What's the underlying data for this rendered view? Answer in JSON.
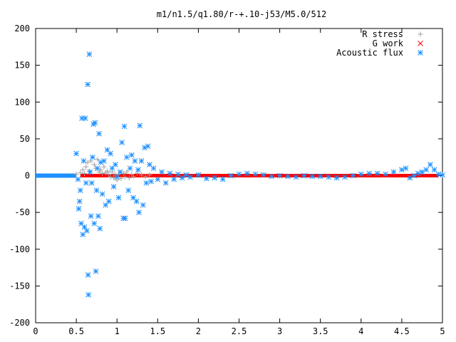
{
  "chart_data": {
    "type": "scatter",
    "title": "m1/n1.5/q1.80/r-+.10-j53/M5.0/512",
    "xlabel": "",
    "ylabel": "",
    "xlim": [
      0,
      5
    ],
    "ylim": [
      -200,
      200
    ],
    "x_ticks": [
      "0",
      "0.5",
      "1",
      "1.5",
      "2",
      "2.5",
      "3",
      "3.5",
      "4",
      "4.5",
      "5"
    ],
    "y_ticks": [
      "200",
      "150",
      "100",
      "50",
      "0",
      "-50",
      "-100",
      "-150",
      "-200"
    ],
    "legend_position": "top-right",
    "grid": false,
    "series": [
      {
        "name": "R stress",
        "marker": "+",
        "color": "#a0a0a0",
        "points": [
          [
            0.5,
            2
          ],
          [
            0.55,
            4
          ],
          [
            0.58,
            8
          ],
          [
            0.6,
            3
          ],
          [
            0.62,
            12
          ],
          [
            0.64,
            18
          ],
          [
            0.66,
            6
          ],
          [
            0.68,
            20
          ],
          [
            0.7,
            25
          ],
          [
            0.72,
            15
          ],
          [
            0.74,
            10
          ],
          [
            0.76,
            22
          ],
          [
            0.78,
            5
          ],
          [
            0.8,
            8
          ],
          [
            0.82,
            3
          ],
          [
            0.84,
            12
          ],
          [
            0.86,
            4
          ],
          [
            0.88,
            6
          ],
          [
            0.9,
            2
          ],
          [
            0.92,
            -2
          ],
          [
            0.94,
            5
          ],
          [
            0.96,
            -3
          ],
          [
            0.98,
            1
          ],
          [
            1.0,
            -6
          ],
          [
            1.02,
            2
          ],
          [
            1.05,
            -4
          ],
          [
            1.08,
            3
          ],
          [
            1.1,
            -2
          ],
          [
            1.12,
            5
          ],
          [
            1.15,
            -3
          ],
          [
            1.18,
            2
          ],
          [
            1.2,
            -1
          ],
          [
            1.25,
            3
          ],
          [
            1.3,
            1
          ],
          [
            1.35,
            -1
          ],
          [
            1.4,
            1
          ]
        ]
      },
      {
        "name": "G work",
        "marker": "x",
        "color": "#ff0000",
        "points": []
      },
      {
        "name": "Acoustic flux",
        "marker": "*",
        "color": "#1e90ff",
        "points": [
          [
            0.5,
            30
          ],
          [
            0.52,
            -5
          ],
          [
            0.53,
            -45
          ],
          [
            0.54,
            -35
          ],
          [
            0.55,
            -20
          ],
          [
            0.56,
            -65
          ],
          [
            0.57,
            78
          ],
          [
            0.58,
            -80
          ],
          [
            0.59,
            20
          ],
          [
            0.6,
            -70
          ],
          [
            0.61,
            78
          ],
          [
            0.62,
            -10
          ],
          [
            0.63,
            -75
          ],
          [
            0.64,
            124
          ],
          [
            0.645,
            -135
          ],
          [
            0.65,
            -162
          ],
          [
            0.66,
            165
          ],
          [
            0.67,
            5
          ],
          [
            0.68,
            -55
          ],
          [
            0.69,
            -10
          ],
          [
            0.7,
            25
          ],
          [
            0.71,
            70
          ],
          [
            0.72,
            -65
          ],
          [
            0.73,
            72
          ],
          [
            0.74,
            -130
          ],
          [
            0.75,
            -20
          ],
          [
            0.76,
            10
          ],
          [
            0.77,
            -55
          ],
          [
            0.78,
            57
          ],
          [
            0.79,
            -72
          ],
          [
            0.8,
            18
          ],
          [
            0.82,
            -25
          ],
          [
            0.84,
            20
          ],
          [
            0.86,
            -40
          ],
          [
            0.88,
            35
          ],
          [
            0.9,
            -35
          ],
          [
            0.92,
            30
          ],
          [
            0.94,
            10
          ],
          [
            0.96,
            -15
          ],
          [
            0.98,
            15
          ],
          [
            1.0,
            -2
          ],
          [
            1.02,
            -30
          ],
          [
            1.04,
            5
          ],
          [
            1.06,
            45
          ],
          [
            1.08,
            -58
          ],
          [
            1.09,
            67
          ],
          [
            1.1,
            -58
          ],
          [
            1.12,
            25
          ],
          [
            1.14,
            -20
          ],
          [
            1.16,
            10
          ],
          [
            1.18,
            28
          ],
          [
            1.2,
            -30
          ],
          [
            1.22,
            20
          ],
          [
            1.24,
            -35
          ],
          [
            1.26,
            8
          ],
          [
            1.27,
            -50
          ],
          [
            1.28,
            68
          ],
          [
            1.3,
            20
          ],
          [
            1.32,
            -40
          ],
          [
            1.34,
            38
          ],
          [
            1.36,
            -10
          ],
          [
            1.38,
            40
          ],
          [
            1.4,
            15
          ],
          [
            1.42,
            -8
          ],
          [
            1.45,
            10
          ],
          [
            1.5,
            -5
          ],
          [
            1.55,
            5
          ],
          [
            1.6,
            -10
          ],
          [
            1.65,
            3
          ],
          [
            1.7,
            -5
          ],
          [
            1.75,
            2
          ],
          [
            1.8,
            -3
          ],
          [
            1.85,
            1
          ],
          [
            1.9,
            -2
          ],
          [
            2.0,
            1
          ],
          [
            2.1,
            -4
          ],
          [
            2.2,
            -3
          ],
          [
            2.3,
            -5
          ],
          [
            2.4,
            0
          ],
          [
            2.5,
            2
          ],
          [
            2.6,
            3
          ],
          [
            2.7,
            2
          ],
          [
            2.8,
            1
          ],
          [
            2.9,
            -1
          ],
          [
            3.0,
            0
          ],
          [
            3.1,
            -1
          ],
          [
            3.2,
            -2
          ],
          [
            3.3,
            0
          ],
          [
            3.4,
            -1
          ],
          [
            3.5,
            -1
          ],
          [
            3.6,
            -2
          ],
          [
            3.7,
            -3
          ],
          [
            3.8,
            -2
          ],
          [
            3.9,
            0
          ],
          [
            4.0,
            2
          ],
          [
            4.1,
            3
          ],
          [
            4.2,
            3
          ],
          [
            4.3,
            2
          ],
          [
            4.4,
            5
          ],
          [
            4.5,
            8
          ],
          [
            4.55,
            10
          ],
          [
            4.6,
            -3
          ],
          [
            4.65,
            0
          ],
          [
            4.7,
            3
          ],
          [
            4.75,
            5
          ],
          [
            4.8,
            8
          ],
          [
            4.85,
            15
          ],
          [
            4.9,
            8
          ],
          [
            4.95,
            2
          ],
          [
            5.0,
            1
          ]
        ]
      }
    ]
  }
}
